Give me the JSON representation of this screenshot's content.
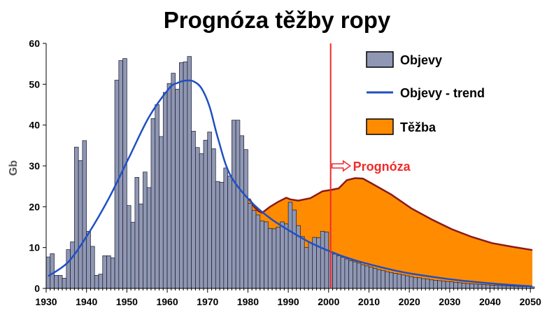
{
  "chart_data": {
    "type": "bar",
    "title": "Prognóza těžby ropy",
    "ylabel": "Gb",
    "xlabel": "",
    "xlim": [
      1930,
      2050
    ],
    "ylim": [
      0,
      60
    ],
    "yticks": [
      0,
      10,
      20,
      30,
      40,
      50,
      60
    ],
    "xticks": [
      1930,
      1940,
      1950,
      1960,
      1970,
      1980,
      1990,
      2000,
      2010,
      2020,
      2030,
      2040,
      2050
    ],
    "grid": false,
    "legend_position": "top-right",
    "series": [
      {
        "name": "Objevy",
        "type": "bar",
        "color": "#8f97b3",
        "years": [
          1930,
          1931,
          1932,
          1933,
          1934,
          1935,
          1936,
          1937,
          1938,
          1939,
          1940,
          1941,
          1942,
          1943,
          1944,
          1945,
          1946,
          1947,
          1948,
          1949,
          1950,
          1951,
          1952,
          1953,
          1954,
          1955,
          1956,
          1957,
          1958,
          1959,
          1960,
          1961,
          1962,
          1963,
          1964,
          1965,
          1966,
          1967,
          1968,
          1969,
          1970,
          1971,
          1972,
          1973,
          1974,
          1975,
          1976,
          1977,
          1978,
          1979,
          1980,
          1981,
          1982,
          1983,
          1984,
          1985,
          1986,
          1987,
          1988,
          1989,
          1990,
          1991,
          1992,
          1993,
          1994,
          1995,
          1996,
          1997,
          1998,
          1999,
          2000,
          2001,
          2002,
          2003,
          2004,
          2005,
          2006,
          2007,
          2008,
          2009,
          2010,
          2011,
          2012,
          2013,
          2014,
          2015,
          2016,
          2017,
          2018,
          2019,
          2020,
          2021,
          2022,
          2023,
          2024,
          2025,
          2026,
          2027,
          2028,
          2029,
          2030,
          2031,
          2032,
          2033,
          2034,
          2035,
          2036,
          2037,
          2038,
          2039,
          2040,
          2041,
          2042,
          2043,
          2044,
          2045,
          2046,
          2047,
          2048,
          2049,
          2050
        ],
        "values": [
          7.7,
          8.5,
          3.2,
          3.2,
          2.5,
          9.5,
          11.4,
          34.6,
          31.3,
          36.2,
          14.0,
          10.3,
          3.2,
          3.5,
          8.0,
          8.0,
          7.5,
          51.0,
          55.8,
          56.3,
          20.3,
          16.2,
          27.2,
          20.7,
          28.5,
          24.7,
          41.6,
          45.0,
          37.2,
          48.0,
          50.2,
          52.7,
          48.8,
          55.3,
          55.5,
          56.8,
          38.5,
          34.5,
          33.0,
          36.3,
          38.3,
          34.2,
          26.2,
          26.0,
          29.5,
          27.5,
          41.2,
          41.2,
          37.4,
          34.0,
          20.8,
          19.1,
          18.0,
          16.5,
          16.3,
          14.7,
          14.6,
          15.0,
          16.3,
          15.8,
          21.1,
          19.2,
          15.4,
          12.7,
          10.0,
          11.2,
          12.5,
          12.4,
          14.0,
          13.8,
          9.0,
          8.4,
          8.0,
          7.6,
          7.2,
          6.8,
          6.5,
          6.2,
          5.8,
          5.5,
          5.2,
          4.9,
          4.6,
          4.4,
          4.1,
          3.9,
          3.7,
          3.5,
          3.3,
          3.1,
          2.9,
          2.7,
          2.6,
          2.4,
          2.3,
          2.1,
          2.0,
          1.9,
          1.8,
          1.7,
          1.6,
          1.5,
          1.4,
          1.3,
          1.2,
          1.1,
          1.05,
          1.0,
          0.93,
          0.87,
          0.8,
          0.75,
          0.7,
          0.65,
          0.6,
          0.55,
          0.5,
          0.47,
          0.44,
          0.41,
          0.38
        ]
      },
      {
        "name": "Objevy - trend",
        "type": "line",
        "color": "#1f4fc4",
        "x": [
          1930,
          1935,
          1940,
          1945,
          1950,
          1955,
          1960,
          1962,
          1964,
          1966,
          1968,
          1970,
          1972,
          1975,
          1980,
          1985,
          1990,
          1995,
          2000,
          2005,
          2010,
          2015,
          2020,
          2030,
          2040,
          2050
        ],
        "y": [
          3.0,
          6.5,
          13.5,
          22.0,
          32.0,
          42.0,
          49.0,
          50.3,
          50.9,
          50.7,
          49.0,
          44.5,
          37.0,
          28.0,
          21.5,
          17.2,
          14.0,
          11.2,
          9.0,
          7.2,
          5.8,
          4.6,
          3.6,
          2.2,
          1.2,
          0.5
        ]
      },
      {
        "name": "Těžba",
        "type": "area",
        "color": "#ff8c00",
        "edge_color": "#8b1a1a",
        "x": [
          1930,
          1935,
          1940,
          1945,
          1950,
          1955,
          1960,
          1965,
          1970,
          1973,
          1974,
          1975,
          1977,
          1979,
          1980,
          1981,
          1982,
          1983,
          1985,
          1987,
          1989,
          1990,
          1992,
          1995,
          1998,
          2000,
          2002,
          2004,
          2006,
          2008,
          2010,
          2015,
          2020,
          2025,
          2030,
          2035,
          2040,
          2045,
          2050
        ],
        "y": [
          2.0,
          2.2,
          2.6,
          3.5,
          4.8,
          6.6,
          9.6,
          13.6,
          18.5,
          20.8,
          21.6,
          19.5,
          21.1,
          21.7,
          21.8,
          20.0,
          19.0,
          18.5,
          20.0,
          21.2,
          22.2,
          21.8,
          21.5,
          22.1,
          23.8,
          24.1,
          24.5,
          26.5,
          27.0,
          26.9,
          25.8,
          23.0,
          19.6,
          16.9,
          14.5,
          12.6,
          11.1,
          10.2,
          9.4
        ]
      }
    ],
    "annotations": [
      {
        "text": "Prognóza",
        "x": 2000.5,
        "color": "#ef2b2b"
      }
    ]
  }
}
